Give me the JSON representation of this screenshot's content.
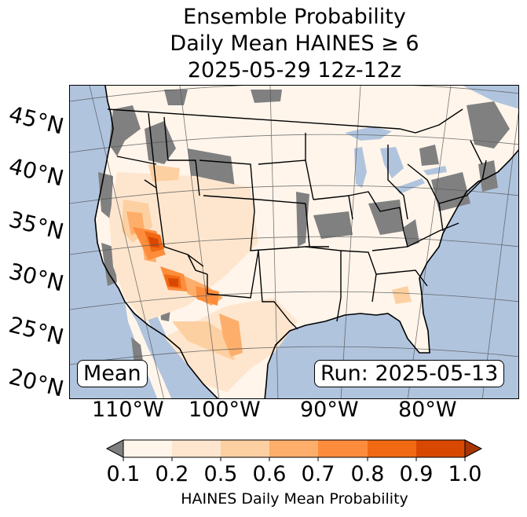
{
  "title": {
    "line1": "Ensemble Probability",
    "line2": "Daily Mean HAINES ≥ 6",
    "line3": "2025-05-29 12z-12z"
  },
  "map": {
    "ocean_color": "#b0c4de",
    "land_color": "#fff5eb",
    "nodata_color": "#808080",
    "lat_labels": [
      "45°N",
      "40°N",
      "35°N",
      "30°N",
      "25°N",
      "20°N"
    ],
    "lon_labels": [
      "110°W",
      "100°W",
      "90°W",
      "80°W"
    ],
    "stat_label": "Mean",
    "run_label": "Run: 2025-05-13"
  },
  "colorbar": {
    "label": "HAINES Daily Mean Probability",
    "ticks": [
      "0.1",
      "0.2",
      "0.5",
      "0.6",
      "0.7",
      "0.8",
      "0.9",
      "1.0"
    ],
    "under_color": "#808080",
    "over_color": "#a63603",
    "colors": [
      "#fff5eb",
      "#fee6ce",
      "#fdd0a2",
      "#fdae6b",
      "#fd8d3c",
      "#f16913",
      "#d94801"
    ]
  }
}
